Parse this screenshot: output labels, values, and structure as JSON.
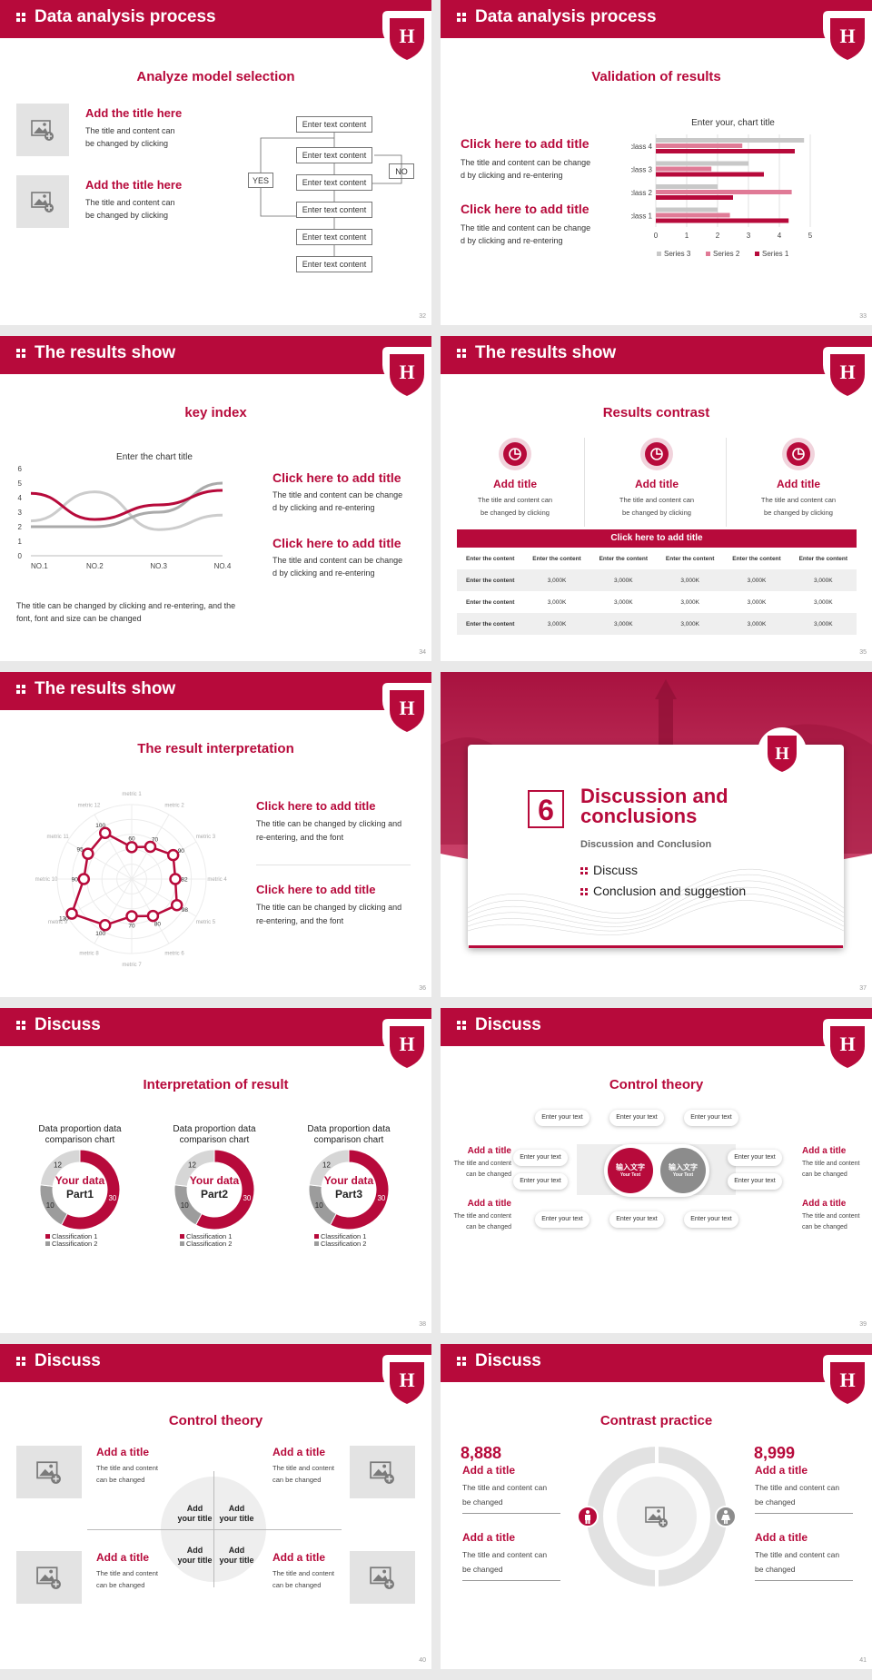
{
  "colors": {
    "accent": "#b70a3b",
    "accent_light": "#e07a96",
    "gray": "#cccccc",
    "dark_gray": "#8c8c8c"
  },
  "s1": {
    "header": "Data analysis process",
    "title": "Analyze model selection",
    "page": "32",
    "items": [
      {
        "title": "Add the title here",
        "text1": "The title and content can",
        "text2": "be changed by clicking"
      },
      {
        "title": "Add the title here",
        "text1": "The title and content can",
        "text2": "be changed by clicking"
      }
    ],
    "flow": {
      "box": "Enter text content",
      "yes": "YES",
      "no": "NO"
    }
  },
  "s2": {
    "header": "Data analysis process",
    "title": "Validation of results",
    "page": "33",
    "items": [
      {
        "title": "Click here to add title",
        "text1": "The title and content can be change",
        "text2": "d by clicking and re-entering"
      },
      {
        "title": "Click here to add title",
        "text1": "The title and content can be change",
        "text2": "d by clicking and re-entering"
      }
    ]
  },
  "s3": {
    "header": "The results show",
    "title": "key index",
    "page": "34",
    "items": [
      {
        "title": "Click here to add title",
        "text1": "The title and content can be change",
        "text2": "d by clicking and re-entering"
      },
      {
        "title": "Click here to add title",
        "text1": "The title and content can be change",
        "text2": "d by clicking and re-entering"
      }
    ],
    "note1": "The title can be changed by clicking and re-entering, and the",
    "note2": "font, font and size can be changed"
  },
  "s4": {
    "header": "The results show",
    "title": "Results contrast",
    "page": "35",
    "cols": [
      {
        "title": "Add title",
        "t1": "The title and content can",
        "t2": "be changed by clicking"
      },
      {
        "title": "Add title",
        "t1": "The title and content can",
        "t2": "be changed by clicking"
      },
      {
        "title": "Add title",
        "t1": "The title and content can",
        "t2": "be changed by clicking"
      }
    ],
    "table_title": "Click here to add title",
    "table": [
      [
        "Enter the content",
        "Enter the content",
        "Enter the content",
        "Enter the content",
        "Enter the content",
        "Enter the content"
      ],
      [
        "Enter the content",
        "3,000K",
        "3,000K",
        "3,000K",
        "3,000K",
        "3,000K"
      ],
      [
        "Enter the content",
        "3,000K",
        "3,000K",
        "3,000K",
        "3,000K",
        "3,000K"
      ],
      [
        "Enter the content",
        "3,000K",
        "3,000K",
        "3,000K",
        "3,000K",
        "3,000K"
      ]
    ]
  },
  "s5": {
    "header": "The results show",
    "title": "The result interpretation",
    "page": "36",
    "items": [
      {
        "title": "Click here to add  title",
        "text1": "The title can be changed by clicking and",
        "text2": "re-entering, and the font"
      },
      {
        "title": "Click here to add  title",
        "text1": "The title can be changed by clicking and",
        "text2": "re-entering, and the font"
      }
    ]
  },
  "s6": {
    "number": "6",
    "title1": "Discussion and",
    "title2": "conclusions",
    "subtitle": "Discussion and Conclusion",
    "bullets": [
      "Discuss",
      "Conclusion and suggestion"
    ],
    "page": "37"
  },
  "s7": {
    "header": "Discuss",
    "title": "Interpretation of result",
    "page": "38",
    "donuts": [
      {
        "caption1": "Data proportion data",
        "caption2": "comparison chart",
        "center1": "Your data",
        "center2": "Part1"
      },
      {
        "caption1": "Data proportion data",
        "caption2": "comparison chart",
        "center1": "Your data",
        "center2": "Part2"
      },
      {
        "caption1": "Data proportion data",
        "caption2": "comparison chart",
        "center1": "Your data",
        "center2": "Part3"
      }
    ],
    "legend": [
      "Classification 1",
      "Classification 2"
    ]
  },
  "s8": {
    "header": "Discuss",
    "title": "Control theory",
    "page": "39",
    "left": [
      {
        "title": "Add a title",
        "t1": "The title and content",
        "t2": "can be changed"
      },
      {
        "title": "Add a title",
        "t1": "The title and content",
        "t2": "can be changed"
      }
    ],
    "right": [
      {
        "title": "Add a title",
        "t1": "The title and content",
        "t2": "can be changed"
      },
      {
        "title": "Add a title",
        "t1": "The title and content",
        "t2": "can be changed"
      }
    ],
    "pill": "Enter your text",
    "center_cn": "输入文字",
    "center_en": "Your Text"
  },
  "s9": {
    "header": "Discuss",
    "title": "Control theory",
    "page": "40",
    "items": [
      {
        "title": "Add a title",
        "t1": "The title and content",
        "t2": "can be changed"
      },
      {
        "title": "Add a title",
        "t1": "The title and content",
        "t2": "can be changed"
      },
      {
        "title": "Add a title",
        "t1": "The title and content",
        "t2": "can be changed"
      },
      {
        "title": "Add a title",
        "t1": "The title and content",
        "t2": "can be changed"
      }
    ],
    "quad1": "Add",
    "quad2": "your title"
  },
  "s10": {
    "header": "Discuss",
    "title": "Contrast practice",
    "page": "41",
    "left_num": "8,888",
    "right_num": "8,999",
    "items": [
      {
        "title": "Add a title",
        "t1": "The title and content can",
        "t2": "be changed"
      },
      {
        "title": "Add a title",
        "t1": "The title and content can",
        "t2": "be changed"
      },
      {
        "title": "Add a title",
        "t1": "The title and content can",
        "t2": "be changed"
      },
      {
        "title": "Add a title",
        "t1": "The title and content can",
        "t2": "be changed"
      }
    ]
  },
  "chart_data": [
    {
      "type": "bar",
      "orientation": "horizontal",
      "title": "Enter your, chart title",
      "categories": [
        "class 1",
        "class 2",
        "class 3",
        "class 4"
      ],
      "xlim": [
        0,
        5
      ],
      "xticks": [
        0,
        1,
        2,
        3,
        4,
        5
      ],
      "series": [
        {
          "name": "Series 3",
          "color": "#c8c8c8",
          "values": [
            2.0,
            2.0,
            3.0,
            4.8
          ]
        },
        {
          "name": "Series 2",
          "color": "#e07a96",
          "values": [
            2.4,
            4.4,
            1.8,
            2.8
          ]
        },
        {
          "name": "Series 1",
          "color": "#b70a3b",
          "values": [
            4.3,
            2.5,
            3.5,
            4.5
          ]
        }
      ],
      "legend": "bottom"
    },
    {
      "type": "line",
      "title": "Enter the chart title",
      "categories": [
        "NO.1",
        "NO.2",
        "NO.3",
        "NO.4"
      ],
      "ylim": [
        0,
        6
      ],
      "yticks": [
        0,
        1,
        2,
        3,
        4,
        5,
        6
      ],
      "series": [
        {
          "color": "#b70a3b",
          "values": [
            4.3,
            2.5,
            3.5,
            4.5
          ]
        },
        {
          "color": "#cccccc",
          "values": [
            2.4,
            4.4,
            1.8,
            2.8
          ]
        },
        {
          "color": "#aaaaaa",
          "values": [
            2.0,
            2.0,
            3.0,
            5.0
          ]
        }
      ]
    },
    {
      "type": "radar",
      "categories": [
        "metric 1",
        "metric 2",
        "metric 3",
        "metric 4",
        "metric 5",
        "metric 6",
        "metric 7",
        "metric 8",
        "metric 9",
        "metric 10",
        "metric 11",
        "metric 12"
      ],
      "values": [
        60,
        70,
        90,
        82,
        98,
        80,
        70,
        100,
        130,
        90,
        95,
        100
      ],
      "labels": [
        "60",
        "70",
        "90",
        "82",
        "98",
        "80",
        "70",
        "100",
        "130",
        "90",
        "95",
        "100"
      ]
    },
    {
      "type": "pie",
      "donut": true,
      "slices": [
        {
          "label": "30",
          "value": 30,
          "color": "#b70a3b"
        },
        {
          "label": "10",
          "value": 10,
          "color": "#9c9c9c"
        },
        {
          "label": "12",
          "value": 12,
          "color": "#d6d6d6"
        }
      ],
      "legend": [
        "Classification 1",
        "Classification 2"
      ],
      "repeat": 3
    }
  ]
}
